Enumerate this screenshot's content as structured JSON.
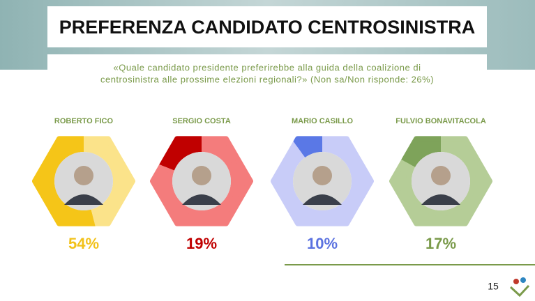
{
  "chart_data": {
    "type": "hexagon-ring",
    "title": "PREFERENZA CANDIDATO CENTROSINISTRA",
    "subtitle": [
      "«Quale candidato presidente preferirebbe alla guida della coalizione di",
      "centrosinistra alle prossime elezioni regionali?» (Non sa/Non risponde: 26%)"
    ],
    "categories": [
      "ROBERTO FICO",
      "SERGIO COSTA",
      "MARIO CASILLO",
      "FULVIO BONAVITACOLA"
    ],
    "values": [
      54,
      19,
      10,
      17
    ],
    "value_labels": [
      "54%",
      "19%",
      "10%",
      "17%"
    ],
    "colors": [
      "#f5c518",
      "#c00000",
      "#5a78e6",
      "#7ea35a"
    ],
    "track_colors": [
      "#fbe38a",
      "#f47c7c",
      "#c8ccf8",
      "#b5cd97"
    ],
    "label_colors": [
      "#f2c21b",
      "#c00000",
      "#5b72e0",
      "#7a9a4a"
    ]
  },
  "footer": {
    "page_number": "15"
  }
}
